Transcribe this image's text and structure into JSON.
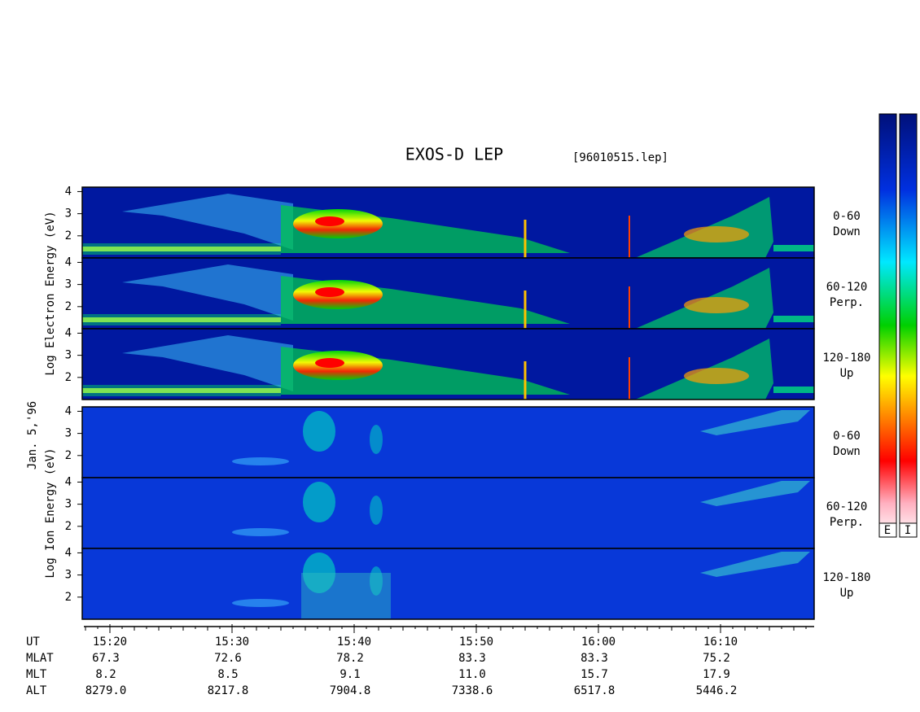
{
  "chart_data": {
    "type": "spectrogram",
    "title": "EXOS-D LEP",
    "subtitle": "[96010515.lep]",
    "date": "Jan. 5,'96",
    "ylim": [
      1,
      4.2
    ],
    "yticks": [
      2,
      3,
      4
    ],
    "groups": [
      {
        "ylabel": "Log  Electron  Energy  (eV)",
        "kind": "electron",
        "panels": [
          {
            "angle": "0-60",
            "dir": "Down"
          },
          {
            "angle": "60-120",
            "dir": "Perp."
          },
          {
            "angle": "120-180",
            "dir": "Up"
          }
        ]
      },
      {
        "ylabel": "Log  Ion  Energy  (eV)",
        "kind": "ion",
        "panels": [
          {
            "angle": "0-60",
            "dir": "Down"
          },
          {
            "angle": "60-120",
            "dir": "Perp."
          },
          {
            "angle": "120-180",
            "dir": "Up"
          }
        ]
      }
    ],
    "xlabel": "UT",
    "xticks": [
      "15:20",
      "15:30",
      "15:40",
      "15:50",
      "16:00",
      "16:10"
    ],
    "rows": [
      {
        "name": "MLAT",
        "values": [
          "67.3",
          "72.6",
          "78.2",
          "83.3",
          "83.3",
          "75.2"
        ]
      },
      {
        "name": "MLT",
        "values": [
          "8.2",
          "8.5",
          "9.1",
          "11.0",
          "15.7",
          "17.9"
        ]
      },
      {
        "name": "ALT",
        "values": [
          "8279.0",
          "8217.8",
          "7904.8",
          "7338.6",
          "6517.8",
          "5446.2"
        ]
      }
    ],
    "colorbar_labels": [
      "E",
      "I"
    ]
  }
}
